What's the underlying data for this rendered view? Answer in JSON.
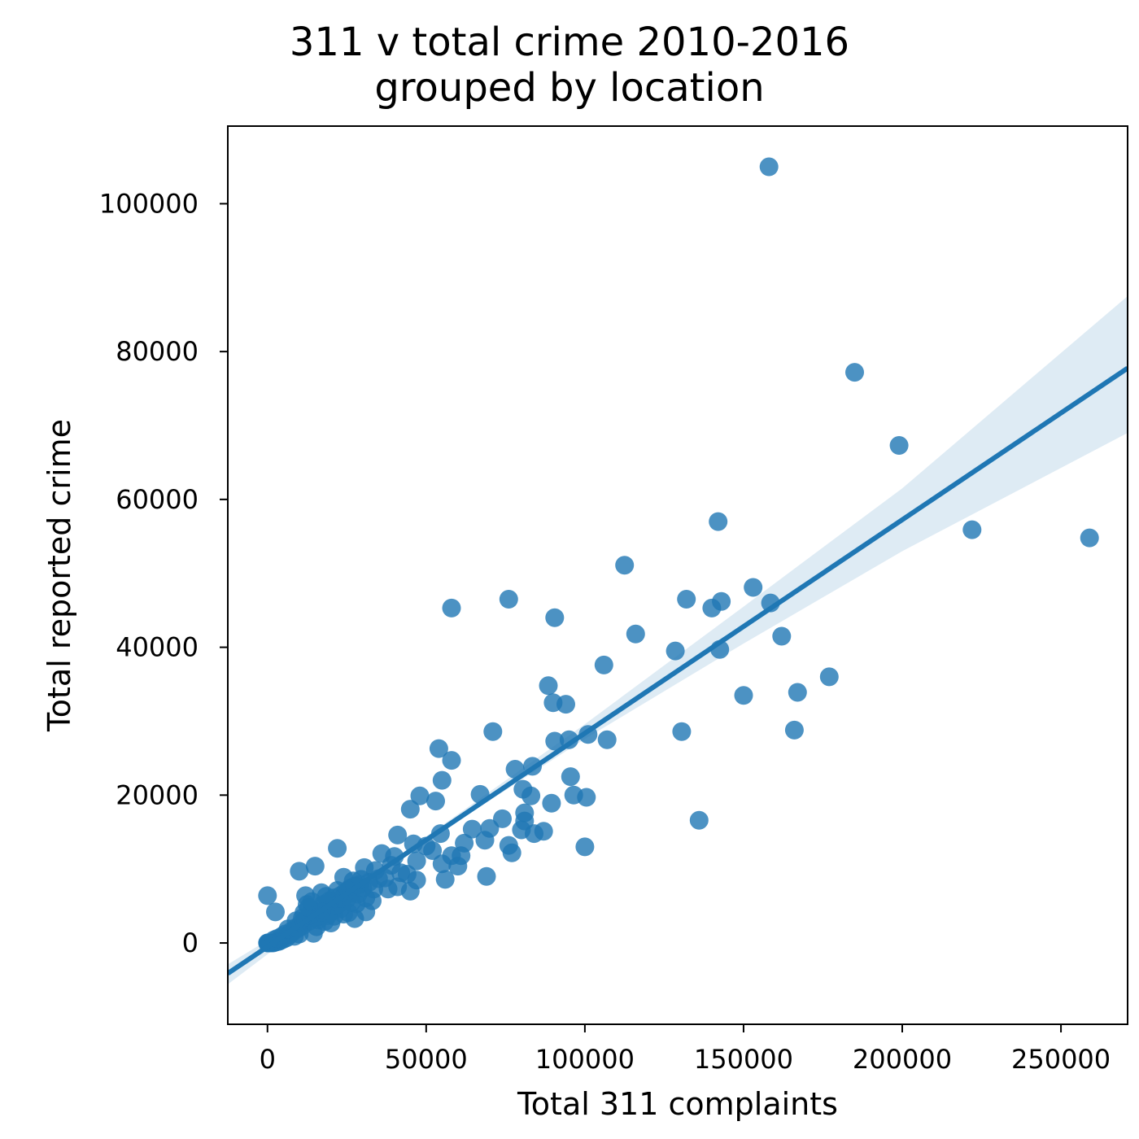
{
  "chart_data": {
    "type": "scatter",
    "title_lines": [
      "311 v total crime 2010-2016",
      "grouped by location"
    ],
    "xlabel": "Total 311 complaints",
    "ylabel": "Total reported crime",
    "xlim": [
      -12500,
      271000
    ],
    "ylim": [
      -11000,
      110500
    ],
    "xticks": [
      0,
      50000,
      100000,
      150000,
      200000,
      250000
    ],
    "xtick_labels": [
      "0",
      "50000",
      "100000",
      "150000",
      "200000",
      "250000"
    ],
    "yticks": [
      0,
      20000,
      40000,
      60000,
      80000,
      100000
    ],
    "ytick_labels": [
      "0",
      "20000",
      "40000",
      "60000",
      "80000",
      "100000"
    ],
    "grid": false,
    "legend": "none",
    "colors": {
      "points": "#1f77b4",
      "line": "#1f77b4",
      "band": "#1f77b4"
    },
    "regression": {
      "slope": 0.2888,
      "intercept": -510,
      "ci_band": [
        {
          "x": -12500,
          "lo": -5600,
          "hi": -2900
        },
        {
          "x": 25000,
          "lo": 6600,
          "hi": 6900
        },
        {
          "x": 60000,
          "lo": 16500,
          "hi": 17400
        },
        {
          "x": 100000,
          "lo": 27600,
          "hi": 29600
        },
        {
          "x": 150000,
          "lo": 40500,
          "hi": 45500
        },
        {
          "x": 200000,
          "lo": 53000,
          "hi": 61500
        },
        {
          "x": 271000,
          "lo": 69000,
          "hi": 87500
        }
      ]
    },
    "points": [
      [
        158000,
        105000
      ],
      [
        185000,
        77200
      ],
      [
        199000,
        67300
      ],
      [
        222000,
        55900
      ],
      [
        259000,
        54800
      ],
      [
        142000,
        57000
      ],
      [
        112500,
        51100
      ],
      [
        153000,
        48100
      ],
      [
        132000,
        46500
      ],
      [
        143000,
        46200
      ],
      [
        158500,
        46000
      ],
      [
        140000,
        45300
      ],
      [
        76000,
        46500
      ],
      [
        58000,
        45300
      ],
      [
        90500,
        44000
      ],
      [
        116000,
        41800
      ],
      [
        162000,
        41500
      ],
      [
        128500,
        39500
      ],
      [
        142500,
        39700
      ],
      [
        106000,
        37600
      ],
      [
        177000,
        36000
      ],
      [
        88500,
        34800
      ],
      [
        167000,
        33900
      ],
      [
        150000,
        33500
      ],
      [
        90000,
        32500
      ],
      [
        94000,
        32300
      ],
      [
        71000,
        28600
      ],
      [
        130500,
        28600
      ],
      [
        166000,
        28800
      ],
      [
        90500,
        27300
      ],
      [
        95000,
        27500
      ],
      [
        101000,
        28200
      ],
      [
        107000,
        27500
      ],
      [
        54000,
        26300
      ],
      [
        58000,
        24700
      ],
      [
        78000,
        23500
      ],
      [
        83500,
        23900
      ],
      [
        95500,
        22500
      ],
      [
        55000,
        22000
      ],
      [
        67000,
        20100
      ],
      [
        80500,
        20800
      ],
      [
        48000,
        19900
      ],
      [
        53000,
        19200
      ],
      [
        83000,
        19900
      ],
      [
        89500,
        18900
      ],
      [
        96500,
        20000
      ],
      [
        100500,
        19700
      ],
      [
        81000,
        17600
      ],
      [
        81000,
        16500
      ],
      [
        45000,
        18100
      ],
      [
        74000,
        16800
      ],
      [
        80000,
        15300
      ],
      [
        84000,
        14800
      ],
      [
        87000,
        15100
      ],
      [
        70000,
        15500
      ],
      [
        64500,
        15400
      ],
      [
        68500,
        13900
      ],
      [
        62000,
        13500
      ],
      [
        76000,
        13200
      ],
      [
        77000,
        12200
      ],
      [
        54500,
        14800
      ],
      [
        41000,
        14600
      ],
      [
        46000,
        13400
      ],
      [
        50000,
        13100
      ],
      [
        52000,
        12500
      ],
      [
        36000,
        12100
      ],
      [
        40000,
        11700
      ],
      [
        47000,
        11100
      ],
      [
        58000,
        11800
      ],
      [
        61000,
        11800
      ],
      [
        55000,
        10700
      ],
      [
        60000,
        10400
      ],
      [
        44000,
        9300
      ],
      [
        39000,
        10500
      ],
      [
        34000,
        9800
      ],
      [
        30500,
        10200
      ],
      [
        15000,
        10400
      ],
      [
        10000,
        9700
      ],
      [
        22000,
        12800
      ],
      [
        56000,
        8600
      ],
      [
        69000,
        9000
      ],
      [
        47000,
        8500
      ],
      [
        41000,
        7600
      ],
      [
        45000,
        7000
      ],
      [
        100000,
        13000
      ],
      [
        136000,
        16600
      ],
      [
        0,
        6400
      ],
      [
        2500,
        4200
      ],
      [
        12000,
        6400
      ],
      [
        17000,
        6800
      ],
      [
        20000,
        5600
      ],
      [
        24000,
        8900
      ],
      [
        27000,
        8400
      ],
      [
        31000,
        6100
      ],
      [
        33000,
        5700
      ],
      [
        29000,
        7900
      ],
      [
        26000,
        6700
      ],
      [
        22000,
        7100
      ],
      [
        19000,
        5000
      ],
      [
        23000,
        4600
      ],
      [
        25500,
        4100
      ],
      [
        27500,
        3300
      ],
      [
        31000,
        4200
      ],
      [
        21000,
        3600
      ],
      [
        18000,
        2900
      ],
      [
        16000,
        3100
      ],
      [
        14000,
        4500
      ],
      [
        13000,
        2900
      ],
      [
        11000,
        2300
      ],
      [
        9500,
        1900
      ],
      [
        8000,
        1500
      ],
      [
        7000,
        1100
      ],
      [
        6000,
        700
      ],
      [
        5000,
        500
      ],
      [
        4000,
        300
      ],
      [
        3500,
        200
      ],
      [
        2500,
        100
      ],
      [
        1800,
        0
      ],
      [
        1200,
        0
      ],
      [
        600,
        0
      ],
      [
        300,
        0
      ],
      [
        100,
        0
      ],
      [
        0,
        0
      ],
      [
        2000,
        400
      ],
      [
        3000,
        600
      ],
      [
        4500,
        900
      ],
      [
        5500,
        1200
      ],
      [
        7500,
        1600
      ],
      [
        9000,
        2100
      ],
      [
        10500,
        2600
      ],
      [
        12000,
        3200
      ],
      [
        13500,
        3700
      ],
      [
        15000,
        4100
      ],
      [
        16500,
        4600
      ],
      [
        17500,
        5200
      ],
      [
        19500,
        5700
      ],
      [
        21000,
        6100
      ],
      [
        23000,
        6400
      ],
      [
        24500,
        6900
      ],
      [
        26000,
        7400
      ],
      [
        27500,
        7700
      ],
      [
        28500,
        6600
      ],
      [
        14500,
        1300
      ],
      [
        10000,
        1200
      ],
      [
        8500,
        900
      ],
      [
        12500,
        5200
      ],
      [
        11500,
        4100
      ],
      [
        18500,
        6300
      ],
      [
        20500,
        4300
      ],
      [
        22500,
        5300
      ],
      [
        25000,
        5900
      ],
      [
        24000,
        3900
      ],
      [
        28000,
        5300
      ],
      [
        30000,
        7400
      ],
      [
        32000,
        8200
      ],
      [
        35000,
        8700
      ],
      [
        37000,
        8800
      ],
      [
        42000,
        9500
      ],
      [
        38000,
        7300
      ],
      [
        15500,
        2200
      ],
      [
        16500,
        3600
      ],
      [
        19000,
        3700
      ],
      [
        20000,
        2700
      ],
      [
        6500,
        1900
      ],
      [
        9000,
        3000
      ],
      [
        11000,
        3400
      ],
      [
        13000,
        4800
      ],
      [
        14000,
        5600
      ],
      [
        17000,
        4200
      ],
      [
        21500,
        5100
      ],
      [
        23500,
        6000
      ],
      [
        25500,
        7100
      ],
      [
        26500,
        5500
      ],
      [
        29500,
        8600
      ],
      [
        33500,
        7300
      ]
    ]
  }
}
